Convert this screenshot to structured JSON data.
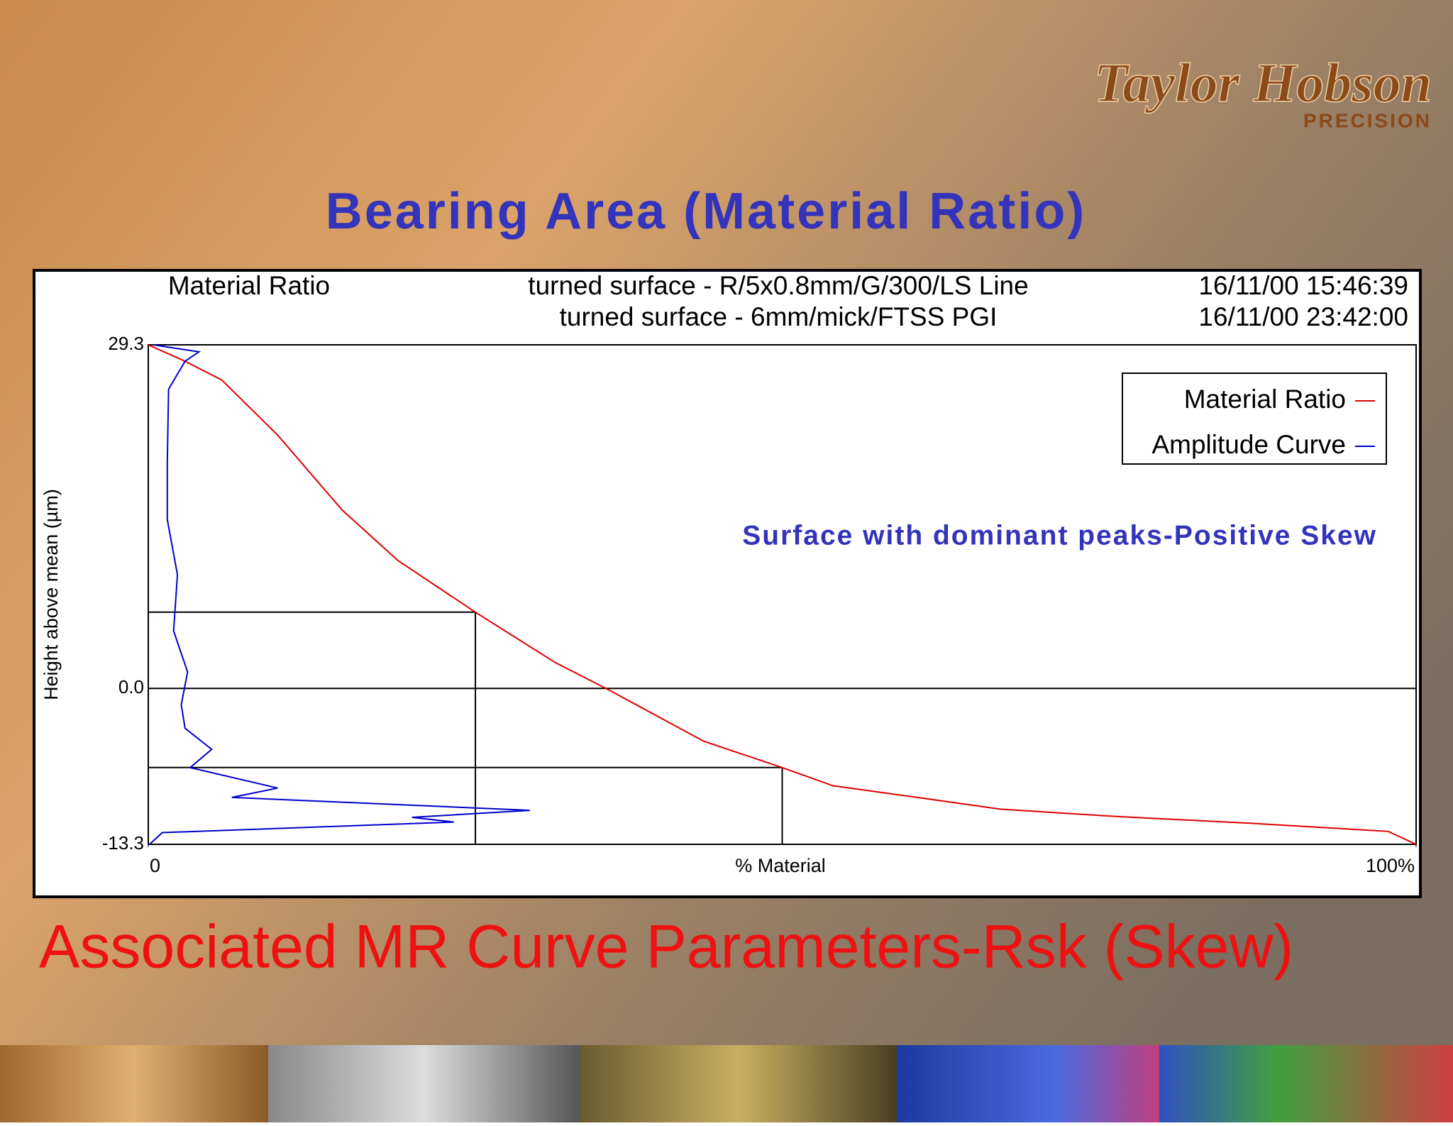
{
  "logo": {
    "name": "Taylor Hobson",
    "tagline": "PRECISION"
  },
  "slide_title": "Bearing Area (Material Ratio)",
  "slide_footer": "Associated MR Curve Parameters-Rsk (Skew)",
  "chart_data": {
    "type": "line",
    "title": "Material Ratio",
    "subtitle_lines": [
      "turned surface - R/5x0.8mm/G/300/LS Line",
      "turned surface - 6mm/mick/FTSS PGI"
    ],
    "timestamps": [
      "16/11/00 15:46:39",
      "16/11/00 23:42:00"
    ],
    "xlabel": "% Material",
    "ylabel": "Height above mean (µm)",
    "annotation": "Surface with dominant peaks-Positive Skew",
    "xlim": [
      0,
      100
    ],
    "xticks": [
      0,
      {
        "value": 100,
        "label": "100%"
      }
    ],
    "ylim": [
      -13.3,
      29.3
    ],
    "yticks": [
      29.3,
      {
        "value": 0,
        "label": "0.0"
      },
      -13.3
    ],
    "grid": true,
    "legend": "upper right",
    "reference_points": [
      {
        "x": 25.8,
        "y": 6.5
      },
      {
        "x": 50,
        "y": -6.75
      }
    ],
    "series": [
      {
        "name": "Material Ratio",
        "color": "#dd0000",
        "x": [
          0,
          2.9,
          5.8,
          10.2,
          15.3,
          19.7,
          25.8,
          32.1,
          36.1,
          43.8,
          50,
          54,
          61.3,
          67.2,
          75.9,
          86.9,
          97.8,
          100
        ],
        "values": [
          29.3,
          27.9,
          26.3,
          21.6,
          15.2,
          10.9,
          6.5,
          2.2,
          0,
          -4.5,
          -6.75,
          -8.3,
          -9.4,
          -10.3,
          -10.9,
          -11.5,
          -12.2,
          -13.3
        ]
      },
      {
        "name": "Amplitude Curve",
        "color": "#0000cc",
        "x": [
          0.4,
          4,
          2.9,
          1.6,
          1.5,
          1.5,
          2.3,
          2.0,
          3.1,
          2.6,
          2.9,
          5,
          3.3,
          10.2,
          6.6,
          30.1,
          20.8,
          24.1,
          1.1,
          0.1
        ],
        "values": [
          29.3,
          28.7,
          27.9,
          25.5,
          19.2,
          14.4,
          9.7,
          4.9,
          1.4,
          -1.4,
          -3.4,
          -5.2,
          -6.75,
          -8.5,
          -9.3,
          -10.4,
          -11.0,
          -11.4,
          -12.3,
          -13.3
        ]
      }
    ]
  }
}
